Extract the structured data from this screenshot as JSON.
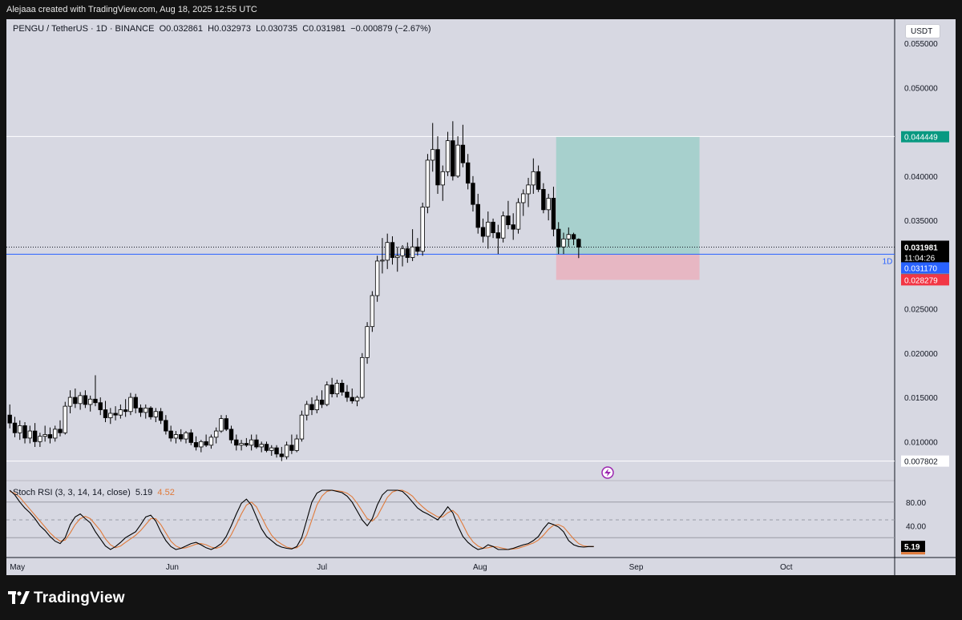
{
  "topbar": {
    "text": "Alejaaa created with TradingView.com, Aug 18, 2025 12:55 UTC"
  },
  "legend": {
    "symbol": "PENGU / TetherUS · 1D · BINANCE",
    "o_label": "O",
    "o": "0.032861",
    "h_label": "H",
    "h": "0.032973",
    "l_label": "L",
    "l": "0.030735",
    "c_label": "C",
    "c": "0.031981",
    "change": "−0.000879 (−2.67%)"
  },
  "currency": "USDT",
  "interval_marker": "1D",
  "footer": {
    "brand": "TradingView",
    "logo_icon": "tradingview-logo-icon"
  },
  "colors": {
    "background": "#d7d8e2",
    "candle_up_body": "#ffffff",
    "candle_down_body": "#000000",
    "wick": "#000000",
    "profit_zone": "#9fcfc9",
    "loss_zone": "#e9b4c0",
    "blue_line": "#2962ff",
    "rsi_k": "#000000",
    "rsi_d": "#e07a3a",
    "tag_green": "#089981",
    "tag_blue": "#2962ff",
    "tag_gray": "#6b6d75",
    "tag_red": "#f23645",
    "tag_black": "#000000",
    "storm_icon": "#9c27b0"
  },
  "chart_data": {
    "type": "candlestick",
    "title": "PENGU / TetherUS · 1D · BINANCE",
    "x_ticks": [
      "May",
      "Jun",
      "Jul",
      "Aug",
      "Sep",
      "Oct"
    ],
    "x_tick_dates": [
      "2025-05-01",
      "2025-06-01",
      "2025-07-01",
      "2025-08-01",
      "2025-09-01",
      "2025-10-01"
    ],
    "y_ticks": [
      "0.055000",
      "0.050000",
      "0.040000",
      "0.035000",
      "0.025000",
      "0.020000",
      "0.015000",
      "0.010000"
    ],
    "y_tick_values": [
      0.055,
      0.05,
      0.04,
      0.035,
      0.025,
      0.02,
      0.015,
      0.01
    ],
    "y_range": [
      0.0065,
      0.057
    ],
    "candles": [
      {
        "o": 0.013,
        "h": 0.0142,
        "l": 0.0115,
        "c": 0.0121
      },
      {
        "o": 0.0121,
        "h": 0.0128,
        "l": 0.0105,
        "c": 0.011
      },
      {
        "o": 0.011,
        "h": 0.0124,
        "l": 0.0102,
        "c": 0.0118
      },
      {
        "o": 0.0118,
        "h": 0.0122,
        "l": 0.0098,
        "c": 0.0104
      },
      {
        "o": 0.0104,
        "h": 0.0118,
        "l": 0.0098,
        "c": 0.0112
      },
      {
        "o": 0.0112,
        "h": 0.0121,
        "l": 0.0094,
        "c": 0.01
      },
      {
        "o": 0.01,
        "h": 0.011,
        "l": 0.0094,
        "c": 0.0106
      },
      {
        "o": 0.0106,
        "h": 0.0118,
        "l": 0.01,
        "c": 0.0108
      },
      {
        "o": 0.0108,
        "h": 0.0116,
        "l": 0.0098,
        "c": 0.0104
      },
      {
        "o": 0.0104,
        "h": 0.0118,
        "l": 0.01,
        "c": 0.0114
      },
      {
        "o": 0.0114,
        "h": 0.0124,
        "l": 0.0106,
        "c": 0.011
      },
      {
        "o": 0.011,
        "h": 0.0145,
        "l": 0.0108,
        "c": 0.014
      },
      {
        "o": 0.014,
        "h": 0.0158,
        "l": 0.0132,
        "c": 0.015
      },
      {
        "o": 0.015,
        "h": 0.016,
        "l": 0.0138,
        "c": 0.0143
      },
      {
        "o": 0.0143,
        "h": 0.0156,
        "l": 0.0136,
        "c": 0.0152
      },
      {
        "o": 0.0152,
        "h": 0.0158,
        "l": 0.0138,
        "c": 0.0142
      },
      {
        "o": 0.0142,
        "h": 0.0152,
        "l": 0.0134,
        "c": 0.0148
      },
      {
        "o": 0.0148,
        "h": 0.0175,
        "l": 0.014,
        "c": 0.0144
      },
      {
        "o": 0.0144,
        "h": 0.015,
        "l": 0.013,
        "c": 0.0136
      },
      {
        "o": 0.0136,
        "h": 0.0146,
        "l": 0.0122,
        "c": 0.0127
      },
      {
        "o": 0.0127,
        "h": 0.0138,
        "l": 0.012,
        "c": 0.0132
      },
      {
        "o": 0.0132,
        "h": 0.014,
        "l": 0.0124,
        "c": 0.013
      },
      {
        "o": 0.013,
        "h": 0.0142,
        "l": 0.0126,
        "c": 0.0136
      },
      {
        "o": 0.0136,
        "h": 0.0148,
        "l": 0.0128,
        "c": 0.0134
      },
      {
        "o": 0.0134,
        "h": 0.0155,
        "l": 0.013,
        "c": 0.015
      },
      {
        "o": 0.015,
        "h": 0.0154,
        "l": 0.0132,
        "c": 0.0138
      },
      {
        "o": 0.0138,
        "h": 0.0142,
        "l": 0.0128,
        "c": 0.0133
      },
      {
        "o": 0.0133,
        "h": 0.0142,
        "l": 0.0126,
        "c": 0.0138
      },
      {
        "o": 0.0138,
        "h": 0.014,
        "l": 0.0125,
        "c": 0.0128
      },
      {
        "o": 0.0128,
        "h": 0.0138,
        "l": 0.0122,
        "c": 0.0134
      },
      {
        "o": 0.0134,
        "h": 0.0138,
        "l": 0.012,
        "c": 0.0124
      },
      {
        "o": 0.0124,
        "h": 0.013,
        "l": 0.0108,
        "c": 0.0112
      },
      {
        "o": 0.0112,
        "h": 0.0118,
        "l": 0.01,
        "c": 0.0104
      },
      {
        "o": 0.0104,
        "h": 0.0112,
        "l": 0.0098,
        "c": 0.0108
      },
      {
        "o": 0.0108,
        "h": 0.0114,
        "l": 0.01,
        "c": 0.0103
      },
      {
        "o": 0.0103,
        "h": 0.0112,
        "l": 0.0098,
        "c": 0.011
      },
      {
        "o": 0.011,
        "h": 0.0114,
        "l": 0.0096,
        "c": 0.0099
      },
      {
        "o": 0.0099,
        "h": 0.0106,
        "l": 0.009,
        "c": 0.0094
      },
      {
        "o": 0.0094,
        "h": 0.0102,
        "l": 0.0088,
        "c": 0.01
      },
      {
        "o": 0.01,
        "h": 0.0108,
        "l": 0.0094,
        "c": 0.0096
      },
      {
        "o": 0.0096,
        "h": 0.0108,
        "l": 0.0092,
        "c": 0.0105
      },
      {
        "o": 0.0105,
        "h": 0.0116,
        "l": 0.0098,
        "c": 0.0112
      },
      {
        "o": 0.0112,
        "h": 0.013,
        "l": 0.011,
        "c": 0.0126
      },
      {
        "o": 0.0126,
        "h": 0.013,
        "l": 0.0112,
        "c": 0.0114
      },
      {
        "o": 0.0114,
        "h": 0.0118,
        "l": 0.0098,
        "c": 0.0102
      },
      {
        "o": 0.0102,
        "h": 0.0108,
        "l": 0.009,
        "c": 0.0096
      },
      {
        "o": 0.0096,
        "h": 0.0102,
        "l": 0.009,
        "c": 0.0098
      },
      {
        "o": 0.0098,
        "h": 0.0104,
        "l": 0.0094,
        "c": 0.0096
      },
      {
        "o": 0.0096,
        "h": 0.0108,
        "l": 0.009,
        "c": 0.0102
      },
      {
        "o": 0.0102,
        "h": 0.0108,
        "l": 0.0092,
        "c": 0.0094
      },
      {
        "o": 0.0094,
        "h": 0.01,
        "l": 0.0088,
        "c": 0.0097
      },
      {
        "o": 0.0097,
        "h": 0.01,
        "l": 0.0088,
        "c": 0.009
      },
      {
        "o": 0.009,
        "h": 0.0096,
        "l": 0.0084,
        "c": 0.0093
      },
      {
        "o": 0.0093,
        "h": 0.0096,
        "l": 0.0082,
        "c": 0.0086
      },
      {
        "o": 0.0086,
        "h": 0.0094,
        "l": 0.0078,
        "c": 0.0083
      },
      {
        "o": 0.0083,
        "h": 0.01,
        "l": 0.008,
        "c": 0.0096
      },
      {
        "o": 0.0096,
        "h": 0.0108,
        "l": 0.0086,
        "c": 0.009
      },
      {
        "o": 0.009,
        "h": 0.0108,
        "l": 0.0088,
        "c": 0.0103
      },
      {
        "o": 0.0103,
        "h": 0.0135,
        "l": 0.01,
        "c": 0.013
      },
      {
        "o": 0.013,
        "h": 0.0146,
        "l": 0.0124,
        "c": 0.0142
      },
      {
        "o": 0.0142,
        "h": 0.015,
        "l": 0.013,
        "c": 0.0136
      },
      {
        "o": 0.0136,
        "h": 0.0152,
        "l": 0.0132,
        "c": 0.0147
      },
      {
        "o": 0.0147,
        "h": 0.0158,
        "l": 0.0138,
        "c": 0.0142
      },
      {
        "o": 0.0142,
        "h": 0.0168,
        "l": 0.014,
        "c": 0.0164
      },
      {
        "o": 0.0164,
        "h": 0.0172,
        "l": 0.015,
        "c": 0.0154
      },
      {
        "o": 0.0154,
        "h": 0.017,
        "l": 0.015,
        "c": 0.0166
      },
      {
        "o": 0.0166,
        "h": 0.017,
        "l": 0.0152,
        "c": 0.0156
      },
      {
        "o": 0.0156,
        "h": 0.0164,
        "l": 0.0145,
        "c": 0.015
      },
      {
        "o": 0.015,
        "h": 0.016,
        "l": 0.0143,
        "c": 0.0146
      },
      {
        "o": 0.0146,
        "h": 0.0152,
        "l": 0.014,
        "c": 0.015
      },
      {
        "o": 0.015,
        "h": 0.02,
        "l": 0.0148,
        "c": 0.0195
      },
      {
        "o": 0.0195,
        "h": 0.0235,
        "l": 0.0188,
        "c": 0.023
      },
      {
        "o": 0.023,
        "h": 0.027,
        "l": 0.0224,
        "c": 0.0265
      },
      {
        "o": 0.0265,
        "h": 0.031,
        "l": 0.0258,
        "c": 0.0304
      },
      {
        "o": 0.0304,
        "h": 0.033,
        "l": 0.029,
        "c": 0.0305
      },
      {
        "o": 0.0305,
        "h": 0.0335,
        "l": 0.0295,
        "c": 0.0325
      },
      {
        "o": 0.0325,
        "h": 0.0332,
        "l": 0.03,
        "c": 0.0308
      },
      {
        "o": 0.0308,
        "h": 0.032,
        "l": 0.0292,
        "c": 0.031
      },
      {
        "o": 0.031,
        "h": 0.0322,
        "l": 0.0298,
        "c": 0.0318
      },
      {
        "o": 0.0318,
        "h": 0.0325,
        "l": 0.0302,
        "c": 0.0308
      },
      {
        "o": 0.0308,
        "h": 0.034,
        "l": 0.0304,
        "c": 0.032
      },
      {
        "o": 0.032,
        "h": 0.033,
        "l": 0.031,
        "c": 0.0315
      },
      {
        "o": 0.0315,
        "h": 0.037,
        "l": 0.031,
        "c": 0.0365
      },
      {
        "o": 0.0365,
        "h": 0.0425,
        "l": 0.0358,
        "c": 0.0418
      },
      {
        "o": 0.0418,
        "h": 0.046,
        "l": 0.0405,
        "c": 0.043
      },
      {
        "o": 0.043,
        "h": 0.0445,
        "l": 0.038,
        "c": 0.039
      },
      {
        "o": 0.039,
        "h": 0.0412,
        "l": 0.0372,
        "c": 0.0405
      },
      {
        "o": 0.0405,
        "h": 0.045,
        "l": 0.04,
        "c": 0.044
      },
      {
        "o": 0.044,
        "h": 0.0462,
        "l": 0.0395,
        "c": 0.04
      },
      {
        "o": 0.04,
        "h": 0.0445,
        "l": 0.0398,
        "c": 0.0435
      },
      {
        "o": 0.0435,
        "h": 0.0458,
        "l": 0.041,
        "c": 0.0415
      },
      {
        "o": 0.0415,
        "h": 0.0425,
        "l": 0.0385,
        "c": 0.0392
      },
      {
        "o": 0.0392,
        "h": 0.04,
        "l": 0.036,
        "c": 0.0368
      },
      {
        "o": 0.0368,
        "h": 0.038,
        "l": 0.0335,
        "c": 0.0342
      },
      {
        "o": 0.0342,
        "h": 0.0352,
        "l": 0.0325,
        "c": 0.0332
      },
      {
        "o": 0.0332,
        "h": 0.036,
        "l": 0.0318,
        "c": 0.0348
      },
      {
        "o": 0.0348,
        "h": 0.0352,
        "l": 0.033,
        "c": 0.0336
      },
      {
        "o": 0.0336,
        "h": 0.0345,
        "l": 0.0312,
        "c": 0.033
      },
      {
        "o": 0.033,
        "h": 0.036,
        "l": 0.0325,
        "c": 0.0355
      },
      {
        "o": 0.0355,
        "h": 0.0372,
        "l": 0.034,
        "c": 0.0345
      },
      {
        "o": 0.0345,
        "h": 0.0358,
        "l": 0.0328,
        "c": 0.034
      },
      {
        "o": 0.034,
        "h": 0.0375,
        "l": 0.0335,
        "c": 0.037
      },
      {
        "o": 0.037,
        "h": 0.0385,
        "l": 0.0355,
        "c": 0.038
      },
      {
        "o": 0.038,
        "h": 0.0398,
        "l": 0.0365,
        "c": 0.039
      },
      {
        "o": 0.039,
        "h": 0.042,
        "l": 0.038,
        "c": 0.0405
      },
      {
        "o": 0.0405,
        "h": 0.0412,
        "l": 0.0382,
        "c": 0.0385
      },
      {
        "o": 0.0385,
        "h": 0.0392,
        "l": 0.0358,
        "c": 0.0362
      },
      {
        "o": 0.0362,
        "h": 0.038,
        "l": 0.035,
        "c": 0.0375
      },
      {
        "o": 0.0375,
        "h": 0.0388,
        "l": 0.0332,
        "c": 0.034
      },
      {
        "o": 0.034,
        "h": 0.0348,
        "l": 0.0312,
        "c": 0.032
      },
      {
        "o": 0.032,
        "h": 0.0336,
        "l": 0.0312,
        "c": 0.0329
      },
      {
        "o": 0.0329,
        "h": 0.0342,
        "l": 0.032,
        "c": 0.0334
      },
      {
        "o": 0.0334,
        "h": 0.0336,
        "l": 0.0322,
        "c": 0.0329
      },
      {
        "o": 0.032861,
        "h": 0.032973,
        "l": 0.030735,
        "c": 0.031981
      }
    ],
    "price_lines": [
      {
        "value": 0.044478,
        "label": "0.044478",
        "tag": "plain"
      },
      {
        "value": 0.044449,
        "label": "0.044449",
        "tag": "green"
      },
      {
        "value": 0.031981,
        "label": "0.031981",
        "sublabel": "11:04:26",
        "tag": "black"
      },
      {
        "value": 0.03117,
        "label": "0.031170",
        "tag": "blue"
      },
      {
        "value": 0.031151,
        "label": "0.031151",
        "tag": "gray"
      },
      {
        "value": 0.028279,
        "label": "0.028279",
        "tag": "red"
      },
      {
        "value": 0.007802,
        "label": "0.007802",
        "tag": "plain"
      }
    ],
    "position": {
      "type": "long",
      "entry": 0.031151,
      "target": 0.044449,
      "stop": 0.028279,
      "start_candle": 109,
      "end_date": "2025-09-15"
    },
    "stoch_rsi": {
      "legend": "Stoch RSI (3, 3, 14, 14, close)",
      "k_value": "5.19",
      "d_value": "4.52",
      "y_ticks": [
        "80.00",
        "40.00"
      ],
      "y_tick_values": [
        80,
        40
      ],
      "bands": [
        80,
        50,
        20
      ],
      "k": [
        100,
        92,
        80,
        70,
        62,
        52,
        40,
        32,
        22,
        14,
        10,
        20,
        42,
        55,
        60,
        52,
        45,
        30,
        18,
        6,
        0,
        5,
        12,
        20,
        25,
        30,
        42,
        55,
        58,
        48,
        30,
        15,
        5,
        0,
        2,
        6,
        10,
        12,
        8,
        3,
        0,
        4,
        10,
        22,
        40,
        60,
        78,
        85,
        75,
        55,
        35,
        22,
        15,
        8,
        4,
        2,
        1,
        5,
        20,
        50,
        80,
        95,
        100,
        100,
        100,
        98,
        96,
        90,
        80,
        65,
        50,
        40,
        52,
        75,
        92,
        100,
        100,
        100,
        98,
        90,
        80,
        70,
        64,
        60,
        55,
        50,
        60,
        72,
        62,
        40,
        22,
        12,
        5,
        0,
        2,
        8,
        5,
        0,
        0,
        0,
        2,
        5,
        8,
        10,
        15,
        22,
        35,
        45,
        42,
        38,
        30,
        15,
        8,
        5,
        4,
        5,
        5
      ],
      "d": [
        98,
        95,
        88,
        78,
        68,
        58,
        48,
        38,
        28,
        20,
        14,
        16,
        28,
        42,
        52,
        56,
        52,
        42,
        32,
        18,
        8,
        3,
        6,
        12,
        18,
        24,
        32,
        42,
        52,
        52,
        42,
        28,
        14,
        6,
        2,
        3,
        6,
        9,
        10,
        8,
        4,
        2,
        5,
        12,
        25,
        42,
        60,
        75,
        80,
        72,
        55,
        38,
        24,
        15,
        9,
        4,
        2,
        3,
        9,
        25,
        50,
        75,
        90,
        98,
        100,
        99,
        98,
        95,
        89,
        78,
        65,
        52,
        48,
        56,
        72,
        88,
        97,
        100,
        100,
        96,
        90,
        80,
        72,
        65,
        60,
        55,
        55,
        62,
        66,
        58,
        42,
        25,
        13,
        6,
        2,
        3,
        5,
        4,
        2,
        0,
        1,
        2,
        5,
        8,
        11,
        16,
        24,
        34,
        41,
        42,
        38,
        28,
        18,
        10,
        6,
        5,
        5
      ]
    }
  }
}
